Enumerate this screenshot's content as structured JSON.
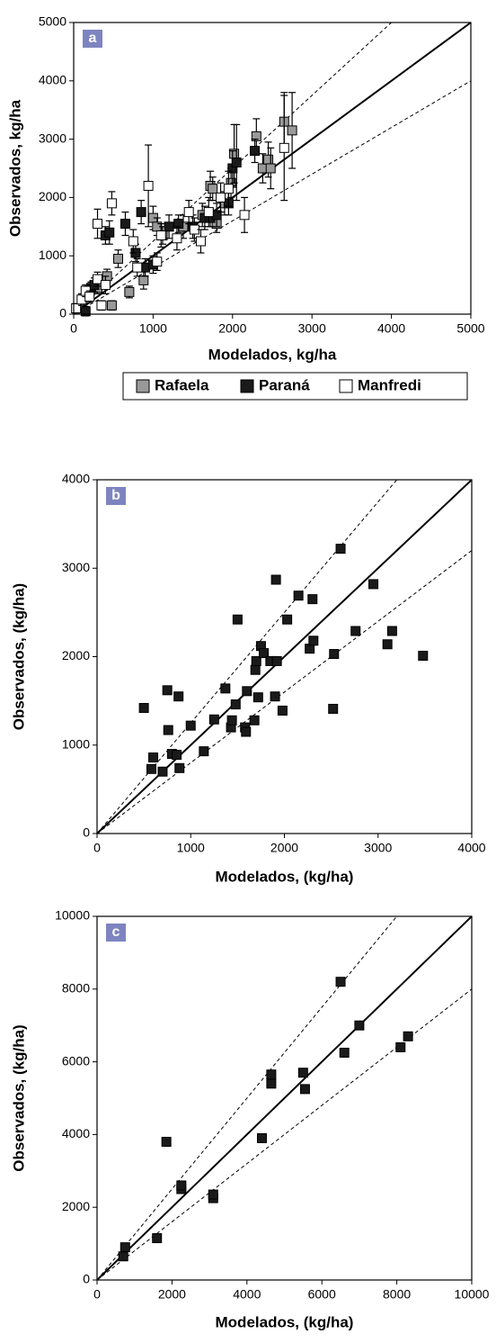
{
  "chart_data": [
    {
      "type": "scatter",
      "title": "a",
      "xlabel": "Modelados, kg/ha",
      "ylabel": "Observados, kg/ha",
      "xlim": [
        0,
        5000
      ],
      "ylim": [
        0,
        5000
      ],
      "xticks": [
        0,
        1000,
        2000,
        3000,
        4000,
        5000
      ],
      "yticks": [
        0,
        1000,
        2000,
        3000,
        4000,
        5000
      ],
      "legend": "below",
      "reference_lines": [
        {
          "slope": 1,
          "style": "solid"
        },
        {
          "slope": 1.25,
          "style": "dashed"
        },
        {
          "slope": 0.8,
          "style": "dashed"
        }
      ],
      "series": [
        {
          "name": "Rafaela",
          "color": "#999999",
          "x": [
            300,
            420,
            480,
            560,
            700,
            880,
            1000,
            1050,
            1120,
            1380,
            1620,
            1720,
            1750,
            1800,
            1900,
            1980,
            2020,
            2300,
            2380,
            2450,
            2480,
            2650,
            2750
          ],
          "y": [
            450,
            650,
            150,
            950,
            380,
            580,
            1650,
            1500,
            1350,
            1500,
            1700,
            2200,
            2150,
            1550,
            1900,
            2250,
            2750,
            3050,
            2500,
            2650,
            2500,
            3300,
            3150
          ],
          "errors": [
            100,
            120,
            80,
            150,
            100,
            150,
            200,
            150,
            150,
            200,
            200,
            250,
            200,
            150,
            200,
            250,
            500,
            300,
            250,
            300,
            350,
            500,
            650
          ]
        },
        {
          "name": "Paraná",
          "color": "#1a1a1a",
          "x": [
            150,
            220,
            260,
            400,
            450,
            650,
            780,
            850,
            900,
            1000,
            1200,
            1320,
            1500,
            1650,
            1720,
            1800,
            1950,
            2000,
            2050,
            2280
          ],
          "y": [
            50,
            450,
            500,
            1350,
            1400,
            1550,
            1050,
            1750,
            800,
            850,
            1500,
            1550,
            1500,
            1650,
            1650,
            1700,
            1900,
            2500,
            2600,
            2800
          ],
          "errors": [
            80,
            100,
            120,
            150,
            200,
            200,
            150,
            200,
            150,
            150,
            200,
            150,
            200,
            200,
            150,
            200,
            200,
            300,
            650,
            200
          ]
        },
        {
          "name": "Manfredi",
          "color": "#ffffff",
          "x": [
            30,
            100,
            150,
            200,
            300,
            350,
            400,
            480,
            300,
            750,
            800,
            940,
            1050,
            1100,
            1300,
            1450,
            1520,
            1600,
            1700,
            1850,
            1950,
            2150,
            2650
          ],
          "y": [
            100,
            250,
            400,
            300,
            600,
            150,
            500,
            1900,
            1550,
            1250,
            800,
            2200,
            900,
            1350,
            1300,
            1750,
            1450,
            1250,
            1750,
            2000,
            2150,
            1700,
            2850
          ],
          "errors": [
            80,
            100,
            100,
            100,
            120,
            80,
            150,
            200,
            250,
            200,
            150,
            700,
            150,
            200,
            200,
            200,
            200,
            200,
            250,
            250,
            300,
            300,
            900
          ]
        }
      ]
    },
    {
      "type": "scatter",
      "title": "b",
      "xlabel": "Modelados, (kg/ha)",
      "ylabel": "Observados, (kg/ha)",
      "xlim": [
        0,
        4000
      ],
      "ylim": [
        0,
        4000
      ],
      "xticks": [
        0,
        1000,
        2000,
        3000,
        4000
      ],
      "yticks": [
        0,
        1000,
        2000,
        3000,
        4000
      ],
      "reference_lines": [
        {
          "slope": 1,
          "style": "solid"
        },
        {
          "slope": 1.25,
          "style": "dashed"
        },
        {
          "slope": 0.8,
          "style": "dashed"
        }
      ],
      "series": [
        {
          "color": "#1a1a1a",
          "x": [
            500,
            580,
            600,
            700,
            750,
            760,
            800,
            850,
            870,
            880,
            1000,
            1140,
            1250,
            1370,
            1430,
            1440,
            1480,
            1500,
            1580,
            1590,
            1600,
            1680,
            1690,
            1700,
            1720,
            1750,
            1780,
            1850,
            1900,
            1920,
            1910,
            1980,
            2030,
            2150,
            2270,
            2300,
            2310,
            2530,
            2520,
            2600,
            2760,
            2950,
            3100,
            3150,
            3480
          ],
          "y": [
            1420,
            730,
            860,
            700,
            1620,
            1170,
            900,
            890,
            1550,
            740,
            1220,
            930,
            1290,
            1640,
            1200,
            1280,
            1460,
            2420,
            1200,
            1150,
            1610,
            1280,
            1850,
            1950,
            1540,
            2120,
            2040,
            1950,
            1550,
            1950,
            2870,
            1390,
            2420,
            2690,
            2090,
            2650,
            2180,
            2030,
            1410,
            3220,
            2290,
            2820,
            2140,
            2290,
            2010
          ]
        }
      ]
    },
    {
      "type": "scatter",
      "title": "c",
      "xlabel": "Modelados, (kg/ha)",
      "ylabel": "Observados, (kg/ha)",
      "xlim": [
        0,
        10000
      ],
      "ylim": [
        0,
        10000
      ],
      "xticks": [
        0,
        2000,
        4000,
        6000,
        8000,
        10000
      ],
      "yticks": [
        0,
        2000,
        4000,
        6000,
        8000,
        10000
      ],
      "reference_lines": [
        {
          "slope": 1,
          "style": "solid"
        },
        {
          "slope": 1.25,
          "style": "dashed"
        },
        {
          "slope": 0.8,
          "style": "dashed"
        }
      ],
      "series": [
        {
          "color": "#1a1a1a",
          "x": [
            700,
            750,
            1600,
            1850,
            2250,
            2250,
            3100,
            3100,
            4400,
            4650,
            4650,
            5500,
            5550,
            6500,
            6600,
            7000,
            8100,
            8300
          ],
          "y": [
            650,
            900,
            1150,
            3800,
            2500,
            2600,
            2250,
            2350,
            3900,
            5400,
            5650,
            5700,
            5250,
            8200,
            6250,
            7000,
            6400,
            6700
          ]
        }
      ]
    }
  ]
}
